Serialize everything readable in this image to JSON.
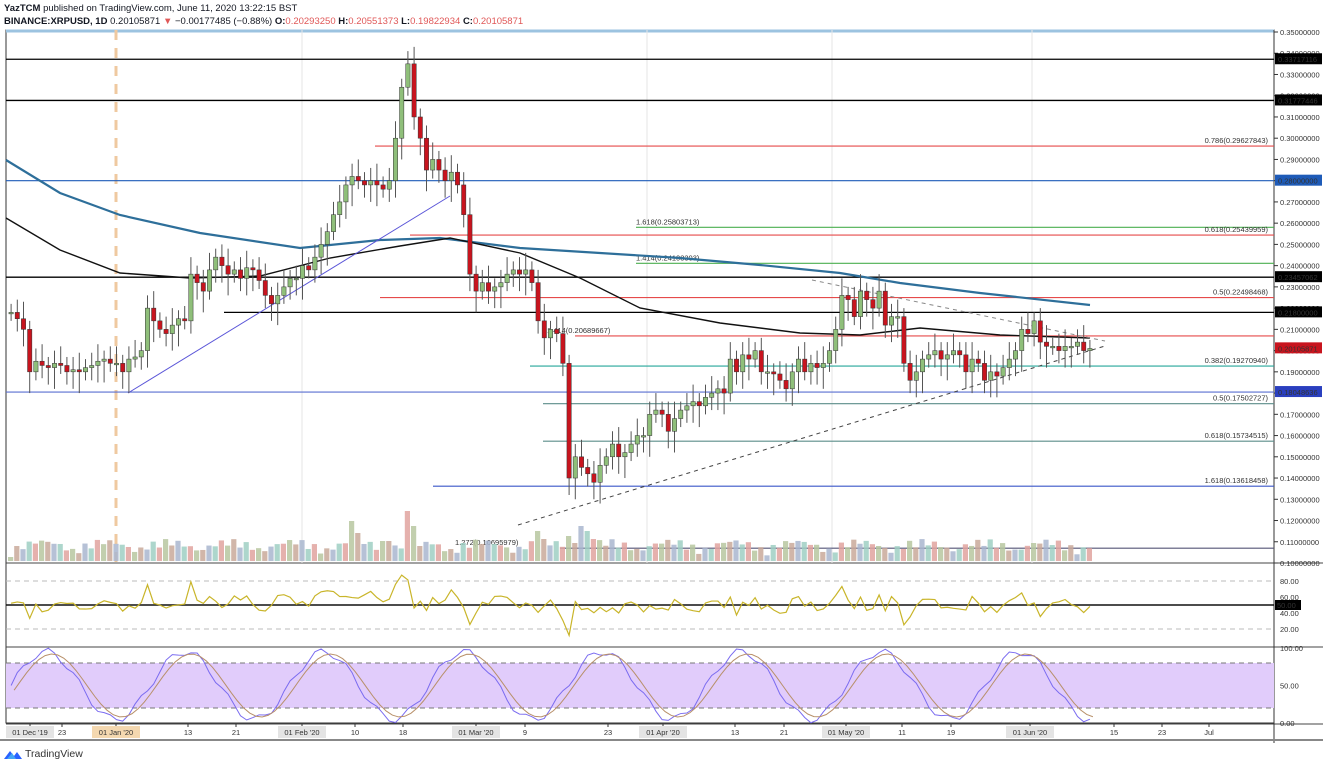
{
  "header": {
    "publisher": "YazTCM",
    "published_text": "published on TradingView.com, June 11, 2020 13:22:15 BST",
    "symbol": "BINANCE:XRPUSD, 1D",
    "last": "0.20105871",
    "change": "−0.00177485 (−0.88%)",
    "open_label": "O:",
    "open": "0.20293250",
    "high_label": "H:",
    "high": "0.20551373",
    "low_label": "L:",
    "low": "0.19822934",
    "close_label": "C:",
    "close": "0.20105871"
  },
  "footer": {
    "brand": "TradingView"
  },
  "colors": {
    "up": "#8fbf7a",
    "down": "#c8141e",
    "ma200": "#2e6f9a",
    "ma100": "#111111",
    "fib_red": "#e64b4b",
    "fib_green": "#4caf50",
    "fib_teal": "#26a69a",
    "blue_line": "#1e5bb8",
    "rsi": "#c9b52a",
    "stoch_k": "#7b6cf0",
    "stoch_d": "#b8906a",
    "stoch_band": "#e1ccfb"
  },
  "chart_data": {
    "type": "candlestick",
    "title": "BINANCE:XRPUSD, 1D",
    "ylim": [
      0.1,
      0.35
    ],
    "price_axis": [
      "0.35000000",
      "0.34000000",
      "0.33000000",
      "0.32000000",
      "0.31000000",
      "0.30000000",
      "0.29000000",
      "0.28000000",
      "0.27000000",
      "0.26000000",
      "0.25000000",
      "0.24000000",
      "0.23000000",
      "0.22000000",
      "0.21000000",
      "0.20000000",
      "0.19000000",
      "0.18000000",
      "0.17000000",
      "0.16000000",
      "0.15000000",
      "0.14000000",
      "0.13000000",
      "0.12000000",
      "0.11000000",
      "0.10000000"
    ],
    "price_labels_highlighted": [
      {
        "value": "0.33717116",
        "bg": "#000000"
      },
      {
        "value": "0.31777446",
        "bg": "#000000"
      },
      {
        "value": "0.28000000",
        "bg": "#1e5bb8"
      },
      {
        "value": "0.23457062",
        "bg": "#000000"
      },
      {
        "value": "0.21800000",
        "bg": "#000000"
      },
      {
        "value": "0.20105871",
        "bg": "#c8141e"
      },
      {
        "value": "0.18048636",
        "bg": "#2a3fbf"
      }
    ],
    "x_ticks": [
      "01 Dec '19",
      "23",
      "01 Jan '20",
      "13",
      "21",
      "01 Feb '20",
      "10",
      "18",
      "01 Mar '20",
      "9",
      "23",
      "01 Apr '20",
      "13",
      "21",
      "01 May '20",
      "11",
      "19",
      "01 Jun '20",
      "15",
      "23",
      "Jul"
    ],
    "horizontal_levels": [
      {
        "price": 0.33717116,
        "color": "#000000",
        "label": ""
      },
      {
        "price": 0.31777446,
        "color": "#000000",
        "label": ""
      },
      {
        "price": 0.29627843,
        "color": "#e64b4b",
        "label": "0.786(0.29627843)"
      },
      {
        "price": 0.28,
        "color": "#1e5bb8",
        "label": ""
      },
      {
        "price": 0.25803713,
        "color": "#4caf50",
        "label": "1.618(0.25803713)"
      },
      {
        "price": 0.25439959,
        "color": "#e64b4b",
        "label": "0.618(0.25439959)"
      },
      {
        "price": 0.24108303,
        "color": "#4caf50",
        "label": "1.414(0.24108303)"
      },
      {
        "price": 0.23457062,
        "color": "#000000",
        "label": ""
      },
      {
        "price": 0.22498468,
        "color": "#e64b4b",
        "label": "0.5(0.22498468)"
      },
      {
        "price": 0.218,
        "color": "#000000",
        "label": ""
      },
      {
        "price": 0.20689667,
        "color": "#e64b4b",
        "label": "1.414(0.20689667)"
      },
      {
        "price": 0.1927094,
        "color": "#26a69a",
        "label": "0.382(0.19270940)"
      },
      {
        "price": 0.18048636,
        "color": "#5a6fd0",
        "label": ""
      },
      {
        "price": 0.17502727,
        "color": "#5b8d8a",
        "label": "0.5(0.17502727)"
      },
      {
        "price": 0.15734515,
        "color": "#5b8d8a",
        "label": "0.618(0.15734515)"
      },
      {
        "price": 0.13618458,
        "color": "#3a56c9",
        "label": "1.618(0.13618458)"
      },
      {
        "price": 0.10695979,
        "color": "#555577",
        "label": "1.272(0.10695979)"
      }
    ],
    "rsi": {
      "axis": [
        "80.00",
        "60.00",
        "50.00",
        "40.00",
        "20.00"
      ],
      "current": "50.00",
      "levels": [
        80,
        50,
        20
      ]
    },
    "stoch_rsi": {
      "axis": [
        "100.00",
        "50.00",
        "0.00"
      ],
      "band": [
        20,
        80
      ]
    },
    "closes": [
      0.218,
      0.215,
      0.21,
      0.19,
      0.195,
      0.193,
      0.192,
      0.194,
      0.193,
      0.19,
      0.191,
      0.19,
      0.192,
      0.193,
      0.195,
      0.196,
      0.194,
      0.194,
      0.19,
      0.196,
      0.197,
      0.2,
      0.22,
      0.214,
      0.21,
      0.208,
      0.212,
      0.215,
      0.214,
      0.236,
      0.232,
      0.228,
      0.238,
      0.244,
      0.24,
      0.236,
      0.238,
      0.234,
      0.239,
      0.238,
      0.233,
      0.226,
      0.222,
      0.226,
      0.23,
      0.234,
      0.234,
      0.24,
      0.238,
      0.244,
      0.25,
      0.256,
      0.264,
      0.27,
      0.278,
      0.282,
      0.28,
      0.278,
      0.28,
      0.278,
      0.276,
      0.28,
      0.3,
      0.324,
      0.335,
      0.31,
      0.3,
      0.285,
      0.29,
      0.285,
      0.28,
      0.284,
      0.278,
      0.264,
      0.236,
      0.228,
      0.232,
      0.228,
      0.23,
      0.232,
      0.236,
      0.238,
      0.236,
      0.238,
      0.232,
      0.214,
      0.206,
      0.21,
      0.208,
      0.194,
      0.14,
      0.15,
      0.145,
      0.142,
      0.138,
      0.146,
      0.15,
      0.156,
      0.15,
      0.152,
      0.156,
      0.16,
      0.16,
      0.17,
      0.172,
      0.17,
      0.162,
      0.168,
      0.172,
      0.174,
      0.176,
      0.174,
      0.178,
      0.18,
      0.182,
      0.18,
      0.196,
      0.19,
      0.198,
      0.196,
      0.2,
      0.19,
      0.19,
      0.189,
      0.186,
      0.182,
      0.19,
      0.196,
      0.19,
      0.194,
      0.192,
      0.194,
      0.2,
      0.21,
      0.226,
      0.224,
      0.216,
      0.228,
      0.224,
      0.22,
      0.228,
      0.212,
      0.216,
      0.216,
      0.194,
      0.186,
      0.19,
      0.196,
      0.198,
      0.2,
      0.196,
      0.198,
      0.2,
      0.198,
      0.19,
      0.196,
      0.194,
      0.186,
      0.19,
      0.188,
      0.192,
      0.196,
      0.2,
      0.21,
      0.208,
      0.214,
      0.204,
      0.202,
      0.202,
      0.2,
      0.202,
      0.202,
      0.204,
      0.2,
      0.201
    ]
  }
}
